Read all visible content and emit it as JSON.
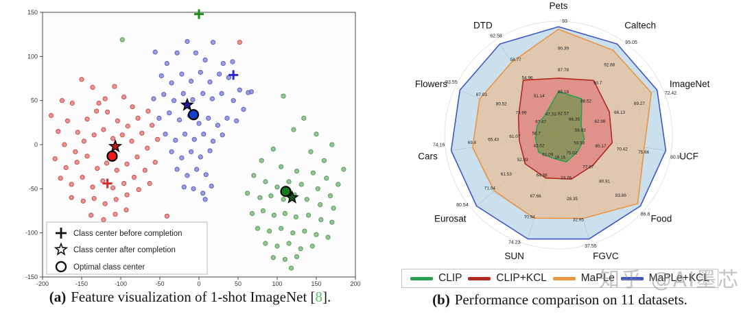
{
  "watermark": "知乎 @AI墨芯",
  "chart_data": [
    {
      "id": "feature-scatter",
      "type": "scatter",
      "caption_tag": "(a)",
      "caption_text": "Feature visualization of 1-shot ImageNet",
      "ref_open": " [",
      "ref_num": "8",
      "ref_close": "].",
      "xlim": [
        -200,
        200
      ],
      "ylim": [
        -150,
        150
      ],
      "x_ticks": [
        -200,
        -150,
        -100,
        -50,
        0,
        50,
        100,
        150,
        200
      ],
      "y_ticks": [
        -150,
        -100,
        -50,
        0,
        50,
        100,
        150
      ],
      "legend": [
        {
          "marker": "plus",
          "label": "Class center before completion"
        },
        {
          "marker": "star",
          "label": "Class center after completion"
        },
        {
          "marker": "circle",
          "label": "Optimal class center"
        }
      ],
      "clusters": [
        {
          "name": "red-cluster",
          "dot_fill": "#e4716d",
          "dot_stroke": "#c7504c",
          "points": [
            [
              -189,
              33
            ],
            [
              -175,
              50
            ],
            [
              -162,
              47
            ],
            [
              -150,
              74
            ],
            [
              -136,
              65
            ],
            [
              -128,
              47
            ],
            [
              -180,
              15
            ],
            [
              -168,
              27
            ],
            [
              -155,
              14
            ],
            [
              -143,
              29
            ],
            [
              -131,
              38
            ],
            [
              -120,
              52
            ],
            [
              -108,
              66
            ],
            [
              -96,
              54
            ],
            [
              -85,
              43
            ],
            [
              -117,
              37
            ],
            [
              -104,
              27
            ],
            [
              -91,
              21
            ],
            [
              -78,
              30
            ],
            [
              -65,
              38
            ],
            [
              -172,
              0
            ],
            [
              -158,
              -8
            ],
            [
              -147,
              4
            ],
            [
              -134,
              11
            ],
            [
              -122,
              17
            ],
            [
              -110,
              7
            ],
            [
              -98,
              11
            ],
            [
              -86,
              4
            ],
            [
              -73,
              13
            ],
            [
              -60,
              22
            ],
            [
              -184,
              -16
            ],
            [
              -170,
              -26
            ],
            [
              -156,
              -20
            ],
            [
              -143,
              -13
            ],
            [
              -130,
              -27
            ],
            [
              -118,
              -21
            ],
            [
              -105,
              -29
            ],
            [
              -92,
              -22
            ],
            [
              -79,
              -14
            ],
            [
              -66,
              -4
            ],
            [
              -53,
              6
            ],
            [
              -177,
              -38
            ],
            [
              -163,
              -45
            ],
            [
              -149,
              -37
            ],
            [
              -136,
              -48
            ],
            [
              -123,
              -41
            ],
            [
              -110,
              -49
            ],
            [
              -96,
              -44
            ],
            [
              -83,
              -37
            ],
            [
              -69,
              -29
            ],
            [
              -56,
              -20
            ],
            [
              -163,
              -60
            ],
            [
              -148,
              -64
            ],
            [
              -134,
              -61
            ],
            [
              -120,
              -67
            ],
            [
              -106,
              -62
            ],
            [
              -92,
              -57
            ],
            [
              -77,
              -51
            ],
            [
              -63,
              -44
            ],
            [
              -138,
              -80
            ],
            [
              -122,
              -85
            ],
            [
              -107,
              -79
            ],
            [
              -93,
              -74
            ],
            [
              -41,
              -81
            ],
            [
              52,
              116
            ]
          ]
        },
        {
          "name": "blue-cluster",
          "dot_fill": "#7b7dd8",
          "dot_stroke": "#5d5fc2",
          "points": [
            [
              -56,
              105
            ],
            [
              -41,
              92
            ],
            [
              -28,
              104
            ],
            [
              -15,
              117
            ],
            [
              -4,
              104
            ],
            [
              8,
              96
            ],
            [
              18,
              116
            ],
            [
              31,
              92
            ],
            [
              43,
              94
            ],
            [
              -48,
              78
            ],
            [
              -35,
              70
            ],
            [
              -22,
              80
            ],
            [
              -10,
              72
            ],
            [
              2,
              82
            ],
            [
              14,
              71
            ],
            [
              26,
              80
            ],
            [
              38,
              76
            ],
            [
              52,
              62
            ],
            [
              63,
              59
            ],
            [
              -58,
              52
            ],
            [
              -45,
              57
            ],
            [
              -32,
              50
            ],
            [
              -20,
              58
            ],
            [
              -8,
              51
            ],
            [
              5,
              58
            ],
            [
              17,
              52
            ],
            [
              29,
              58
            ],
            [
              44,
              50
            ],
            [
              57,
              40
            ],
            [
              -51,
              30
            ],
            [
              -38,
              36
            ],
            [
              -25,
              28
            ],
            [
              -12,
              33
            ],
            [
              0,
              24
            ],
            [
              12,
              30
            ],
            [
              24,
              22
            ],
            [
              36,
              30
            ],
            [
              48,
              27
            ],
            [
              -43,
              12
            ],
            [
              -30,
              5
            ],
            [
              -18,
              12
            ],
            [
              -6,
              6
            ],
            [
              6,
              12
            ],
            [
              18,
              4
            ],
            [
              30,
              11
            ],
            [
              -35,
              -8
            ],
            [
              -22,
              -15
            ],
            [
              -10,
              -8
            ],
            [
              2,
              -14
            ],
            [
              14,
              -7
            ],
            [
              -28,
              -28
            ],
            [
              -15,
              -35
            ],
            [
              -3,
              -28
            ],
            [
              9,
              -34
            ],
            [
              -19,
              -48
            ],
            [
              -7,
              -50
            ],
            [
              5,
              -55
            ],
            [
              16,
              -47
            ],
            [
              8,
              -62
            ],
            [
              67,
              60
            ]
          ]
        },
        {
          "name": "green-cluster",
          "dot_fill": "#74b174",
          "dot_stroke": "#569c56",
          "points": [
            [
              108,
              55
            ],
            [
              134,
              30
            ],
            [
              121,
              17
            ],
            [
              150,
              12
            ],
            [
              170,
              0
            ],
            [
              185,
              -28
            ],
            [
              160,
              -18
            ],
            [
              143,
              -8
            ],
            [
              95,
              -5
            ],
            [
              80,
              -18
            ],
            [
              105,
              -25
            ],
            [
              125,
              -30
            ],
            [
              146,
              -32
            ],
            [
              163,
              -38
            ],
            [
              178,
              -45
            ],
            [
              70,
              -35
            ],
            [
              85,
              -42
            ],
            [
              100,
              -48
            ],
            [
              115,
              -42
            ],
            [
              131,
              -45
            ],
            [
              152,
              -50
            ],
            [
              168,
              -58
            ],
            [
              62,
              -55
            ],
            [
              78,
              -60
            ],
            [
              92,
              -58
            ],
            [
              108,
              -62
            ],
            [
              122,
              -57
            ],
            [
              138,
              -62
            ],
            [
              155,
              -68
            ],
            [
              172,
              -72
            ],
            [
              68,
              -78
            ],
            [
              82,
              -75
            ],
            [
              96,
              -80
            ],
            [
              110,
              -78
            ],
            [
              124,
              -82
            ],
            [
              140,
              -80
            ],
            [
              156,
              -85
            ],
            [
              170,
              -88
            ],
            [
              75,
              -95
            ],
            [
              90,
              -98
            ],
            [
              105,
              -95
            ],
            [
              120,
              -100
            ],
            [
              135,
              -98
            ],
            [
              150,
              -102
            ],
            [
              165,
              -105
            ],
            [
              85,
              -112
            ],
            [
              100,
              -115
            ],
            [
              115,
              -112
            ],
            [
              130,
              -118
            ],
            [
              145,
              -115
            ],
            [
              95,
              -128
            ],
            [
              110,
              -130
            ],
            [
              125,
              -127
            ],
            [
              118,
              -140
            ],
            [
              -98,
              119
            ]
          ]
        }
      ],
      "center_markers": {
        "before": [
          {
            "color": "#1e8c1e",
            "xy": [
              0,
              148
            ]
          },
          {
            "color": "#2424d8",
            "xy": [
              44,
              79
            ]
          },
          {
            "color": "#d92b2b",
            "xy": [
              -117,
              -44
            ]
          }
        ],
        "optimal": [
          {
            "color": "#1240cc",
            "xy": [
              -7,
              34
            ]
          },
          {
            "color": "#ee1c1c",
            "xy": [
              -111,
              -13
            ]
          },
          {
            "color": "#187a18",
            "xy": [
              111,
              -53
            ]
          }
        ],
        "after": [
          {
            "color": "#1a1a99",
            "xy": [
              -15,
              45
            ]
          },
          {
            "color": "#c01919",
            "xy": [
              -107,
              -2
            ]
          },
          {
            "color": "#11581c",
            "xy": [
              119,
              -60
            ]
          }
        ]
      }
    },
    {
      "id": "radar-11-datasets",
      "type": "radar",
      "caption_tag": "(b)",
      "caption_text": "Performance comparison on 11 datasets.",
      "categories": [
        "Pets",
        "Caltech",
        "ImageNet",
        "UCF",
        "Food",
        "FGVC",
        "SUN",
        "Eurosat",
        "Cars",
        "Flowers",
        "DTD"
      ],
      "axis_ticks": [
        [
          82.57,
          85.18,
          87.78,
          90.39,
          93.0
        ],
        [
          86.35,
          88.52,
          90.7,
          92.88,
          95.05
        ],
        [
          59.83,
          62.98,
          66.13,
          69.27,
          72.42
        ],
        [
          59.93,
          65.17,
          70.42,
          75.66,
          80.9
        ],
        [
          75.02,
          77.97,
          80.91,
          83.86,
          86.8
        ],
        [
          19.16,
          23.76,
          28.35,
          32.95,
          37.55
        ],
        [
          61.09,
          64.38,
          67.66,
          70.94,
          74.23
        ],
        [
          42.52,
          52.03,
          61.53,
          71.04,
          80.54
        ],
        [
          56.7,
          61.07,
          65.43,
          69.8,
          74.16
        ],
        [
          67.47,
          73.99,
          80.52,
          87.03,
          93.55
        ],
        [
          47.33,
          51.14,
          54.96,
          58.77,
          62.58
        ]
      ],
      "series": [
        {
          "name": "CLIP",
          "color": "#2aa052",
          "fill": "rgba(128,148,84,0.82)",
          "values": [
            85.2,
            88.5,
            60.3,
            61.0,
            75.5,
            20.5,
            61.4,
            44.5,
            57.0,
            68.0,
            47.8
          ]
        },
        {
          "name": "CLIP+KCL",
          "color": "#b42821",
          "fill": "rgba(222,132,128,0.80)",
          "values": [
            86.8,
            90.7,
            64.8,
            67.8,
            78.3,
            24.3,
            64.6,
            52.3,
            60.3,
            74.2,
            55.0
          ]
        },
        {
          "name": "MaPLe",
          "color": "#ec9440",
          "fill": "rgba(231,190,148,0.70)",
          "values": [
            92.7,
            94.3,
            71.5,
            75.66,
            86.3,
            33.0,
            70.94,
            70.3,
            69.8,
            87.03,
            58.77
          ]
        },
        {
          "name": "MaPLe+KCL",
          "color": "#3d56c5",
          "fill": "rgba(168,204,228,0.60)",
          "values": [
            93.0,
            95.05,
            72.42,
            80.9,
            86.8,
            37.55,
            74.23,
            80.54,
            74.16,
            93.55,
            62.58
          ]
        }
      ]
    }
  ]
}
